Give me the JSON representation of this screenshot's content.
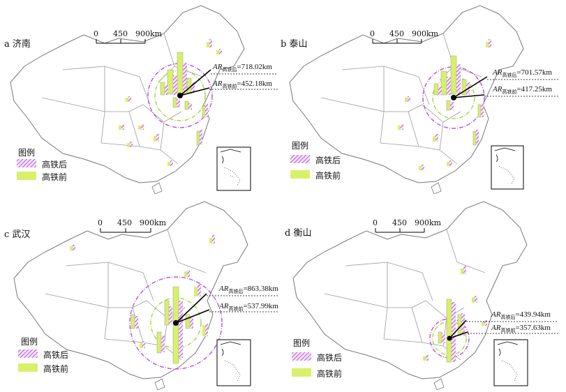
{
  "colors": {
    "before": "#d8f06a",
    "after": "#b84fd9",
    "outline": "#777777"
  },
  "legend": {
    "title": "图例",
    "after_label": "高铁后",
    "before_label": "高铁前"
  },
  "scale": {
    "labels": [
      "0",
      "450",
      "900km"
    ]
  },
  "panels": [
    {
      "label": "a 济南",
      "ar_after": "=718.02km",
      "ar_before": "=452.18km",
      "sub_after": "高铁后",
      "sub_before": "高铁前"
    },
    {
      "label": "b 泰山",
      "ar_after": "=701.57km",
      "ar_before": "=417.25km",
      "sub_after": "高铁后",
      "sub_before": "高铁前"
    },
    {
      "label": "c 武汉",
      "ar_after": "=863.38km",
      "ar_before": "=537.99km",
      "sub_after": "高铁后",
      "sub_before": "高铁前"
    },
    {
      "label": "d 衡山",
      "ar_after": "=439.94km",
      "ar_before": "=357.63km",
      "sub_after": "高铁后",
      "sub_before": "高铁前"
    }
  ],
  "ar_symbol": "AR"
}
